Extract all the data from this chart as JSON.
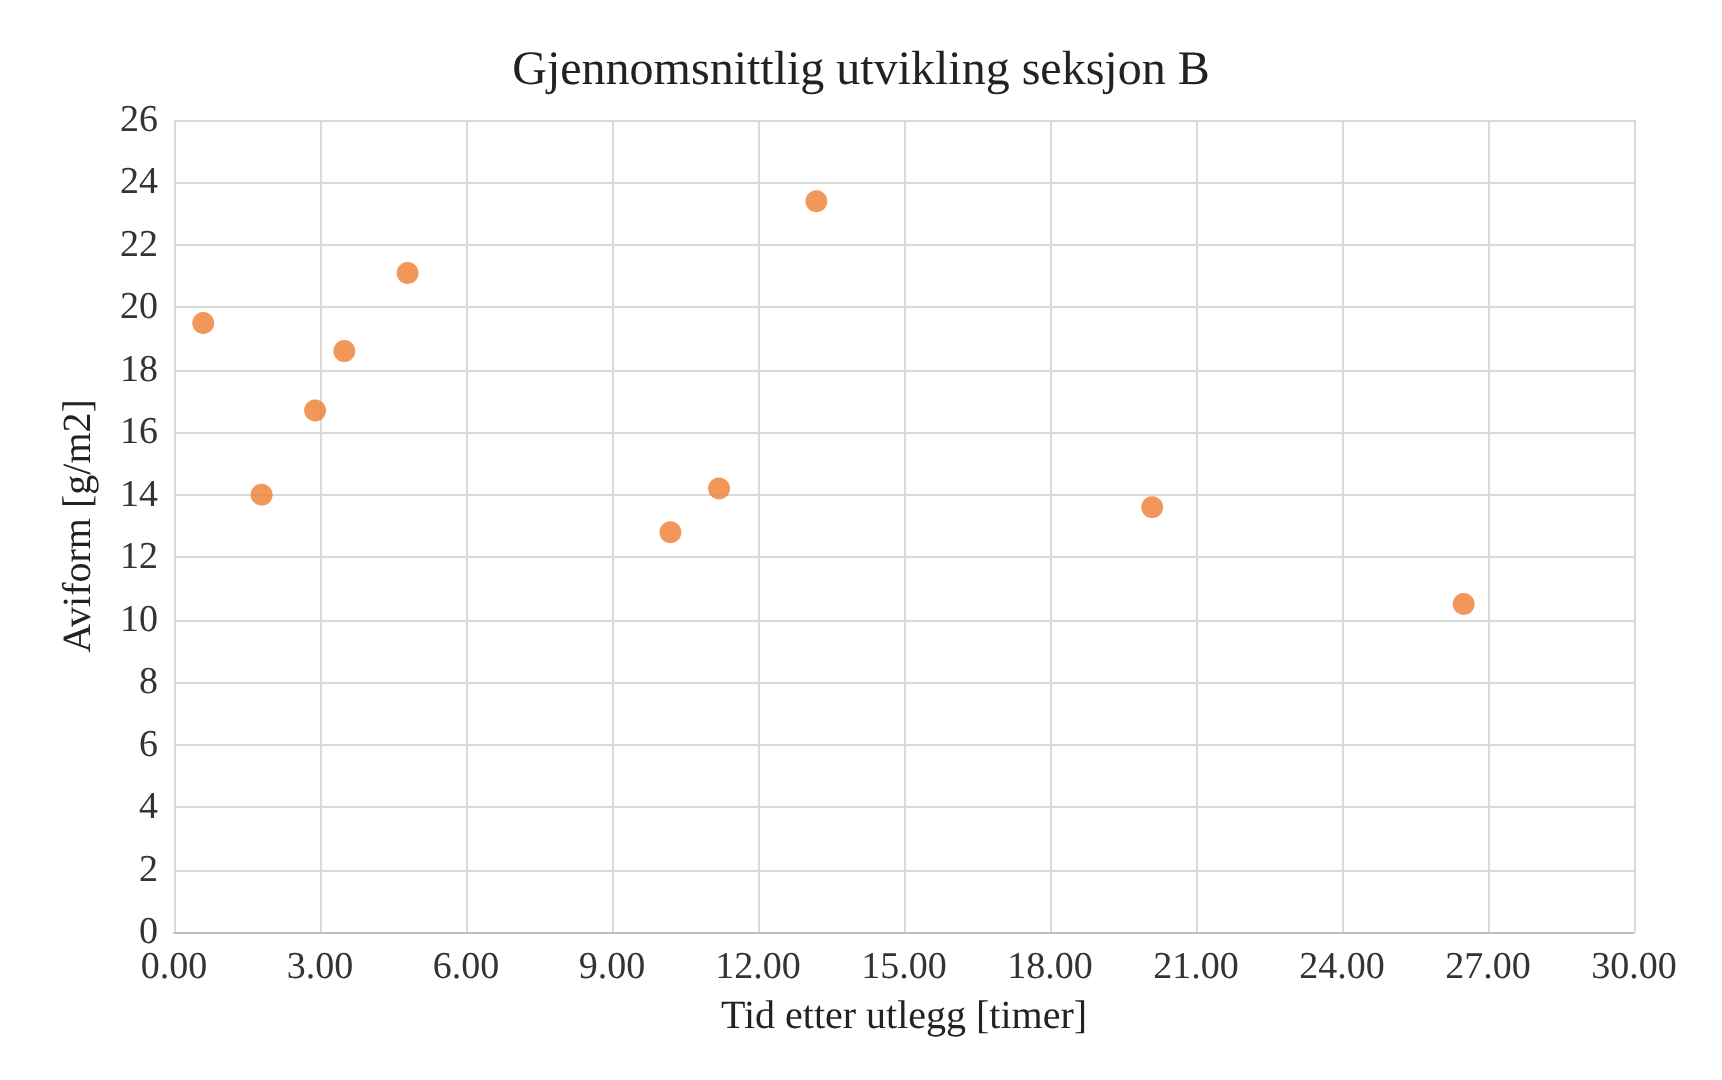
{
  "chart_data": {
    "type": "scatter",
    "title": "Gjennomsnittlig utvikling seksjon B",
    "xlabel": "Tid etter utlegg [timer]",
    "ylabel": "Aviform [g/m2]",
    "x": [
      0.6,
      1.8,
      2.9,
      3.5,
      4.8,
      10.2,
      11.2,
      13.2,
      20.1,
      26.5
    ],
    "series": [
      {
        "color": "#ed7d31",
        "values": [
          19.5,
          14.0,
          16.7,
          18.6,
          21.1,
          12.8,
          14.2,
          23.4,
          13.6,
          10.5
        ]
      }
    ],
    "xlim": [
      0,
      30
    ],
    "xticks": [
      {
        "value": 0,
        "label": "0.00"
      },
      {
        "value": 3,
        "label": "3.00"
      },
      {
        "value": 6,
        "label": "6.00"
      },
      {
        "value": 9,
        "label": "9.00"
      },
      {
        "value": 12,
        "label": "12.00"
      },
      {
        "value": 15,
        "label": "15.00"
      },
      {
        "value": 18,
        "label": "18.00"
      },
      {
        "value": 21,
        "label": "21.00"
      },
      {
        "value": 24,
        "label": "24.00"
      },
      {
        "value": 27,
        "label": "27.00"
      },
      {
        "value": 30,
        "label": "30.00"
      }
    ],
    "ylim": [
      0,
      26
    ],
    "yticks": [
      0,
      2,
      4,
      6,
      8,
      10,
      12,
      14,
      16,
      18,
      20,
      22,
      24,
      26
    ],
    "grid": true,
    "marker": "circle"
  }
}
